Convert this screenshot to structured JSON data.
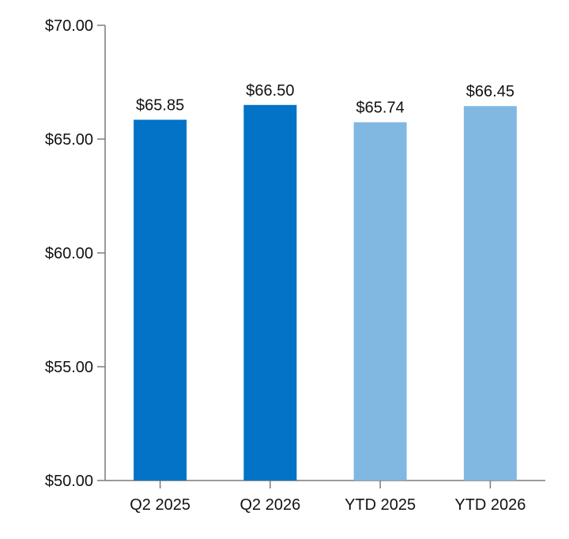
{
  "chart_data": {
    "type": "bar",
    "title": "",
    "xlabel": "",
    "ylabel": "",
    "categories": [
      "Q2 2025",
      "Q2 2026",
      "YTD 2025",
      "YTD 2026"
    ],
    "values": [
      65.85,
      66.5,
      65.74,
      66.45
    ],
    "value_labels": [
      "$65.85",
      "$66.50",
      "$65.74",
      "$66.45"
    ],
    "bar_colors": [
      "#0273c6",
      "#0273c6",
      "#80b8e1",
      "#80b8e1"
    ],
    "ylim": [
      50,
      70
    ],
    "y_ticks": [
      50,
      55,
      60,
      65,
      70
    ],
    "y_tick_labels": [
      "$50.00",
      "$55.00",
      "$60.00",
      "$65.00",
      "$70.00"
    ],
    "grid": false,
    "legend": "none"
  },
  "colors": {
    "axis": "#7a7a7a",
    "text": "#111111",
    "background": "#ffffff"
  }
}
